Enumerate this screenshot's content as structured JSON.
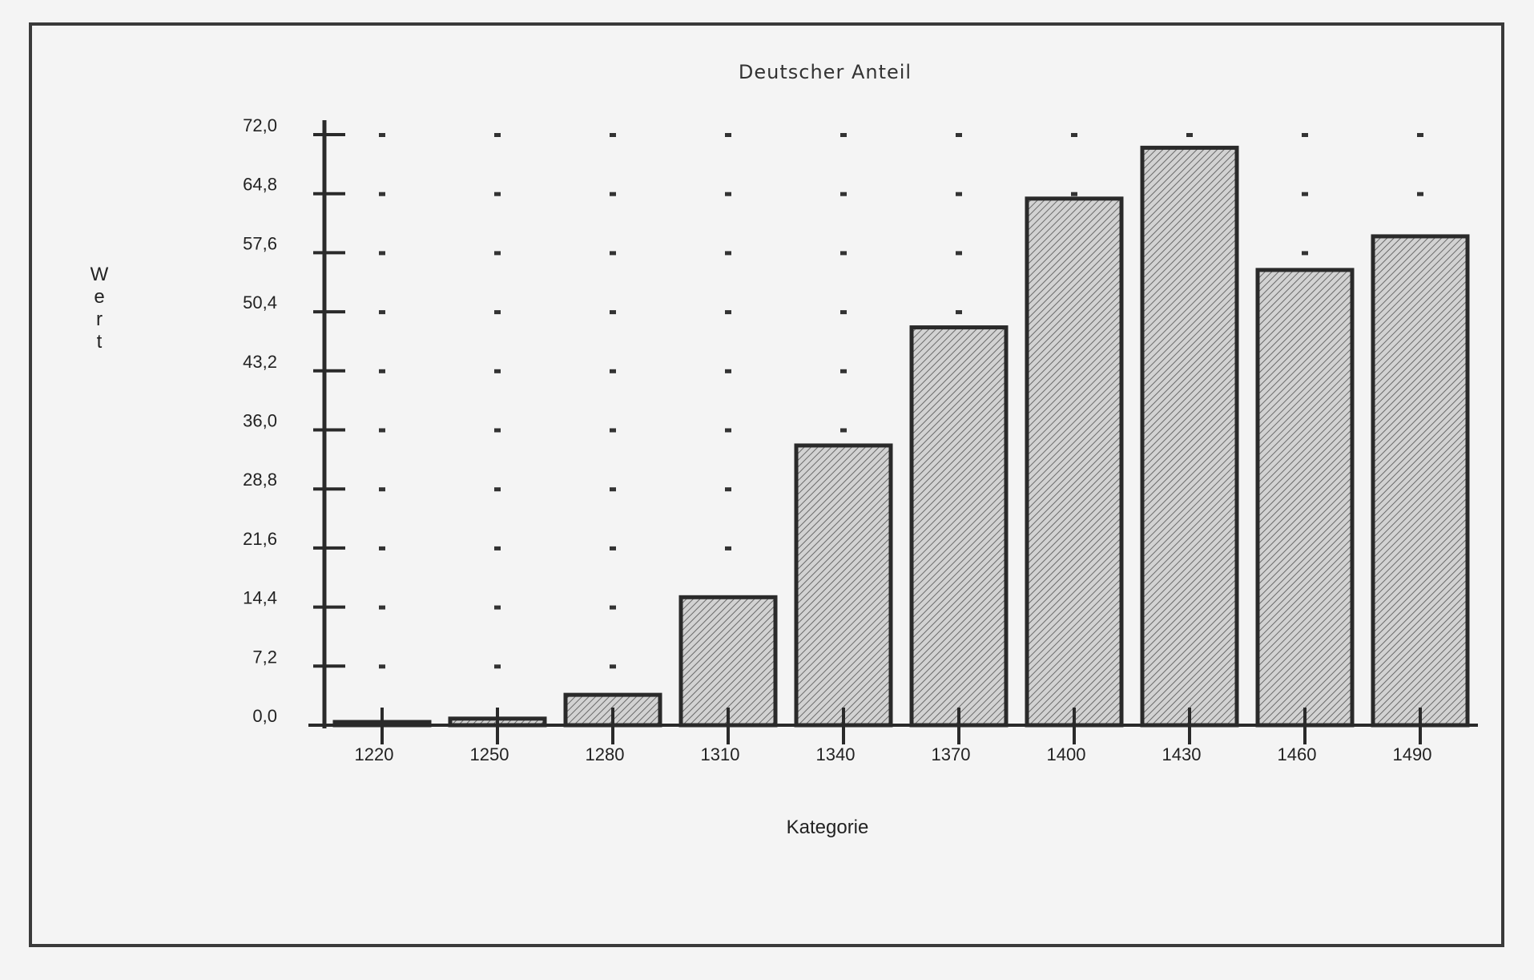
{
  "chart_data": {
    "type": "bar",
    "title": "Deutscher Anteil",
    "xlabel": "Kategorie",
    "ylabel": "Wert",
    "categories": [
      "1220",
      "1250",
      "1280",
      "1310",
      "1340",
      "1370",
      "1400",
      "1430",
      "1460",
      "1490"
    ],
    "values": [
      0.3,
      0.8,
      3.7,
      15.6,
      34.1,
      48.5,
      64.2,
      70.4,
      55.5,
      59.6
    ],
    "y_tick_labels": [
      "0,0",
      "7,2",
      "14,4",
      "21,6",
      "28,8",
      "36,0",
      "43,2",
      "50,4",
      "57,6",
      "64,8",
      "72,0"
    ],
    "ylim": [
      0,
      72
    ],
    "grid": "dotted",
    "legend": "none",
    "colors": {
      "bar_fill": "#c9c9c9",
      "bar_stroke": "#2a2a2a",
      "axis": "#2a2a2a",
      "background": "#f4f4f4"
    }
  }
}
